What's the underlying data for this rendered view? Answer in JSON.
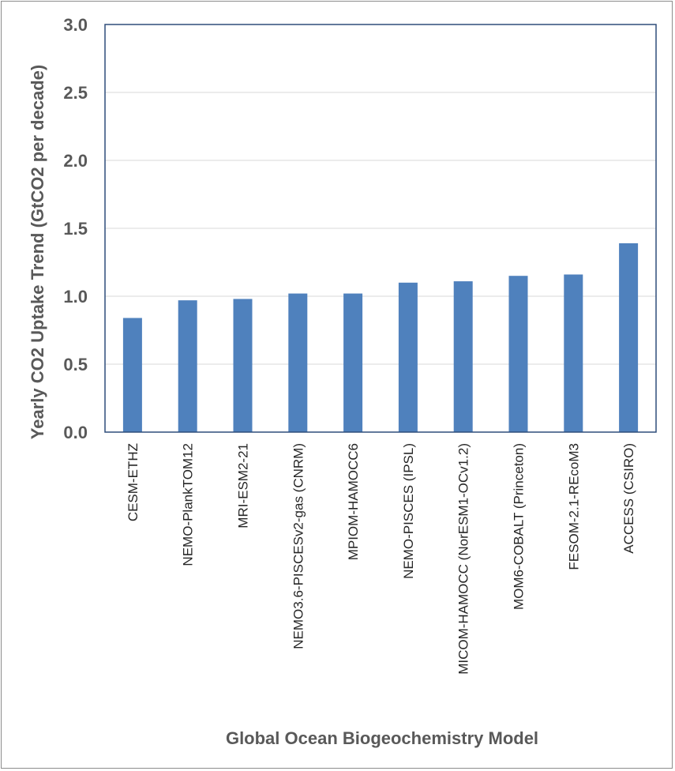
{
  "chart_data": {
    "type": "bar",
    "categories": [
      "CESM-ETHZ",
      "NEMO-PlankTOM12",
      "MRI-ESM2-21",
      "NEMO3.6-PISCESv2-gas (CNRM)",
      "MPIOM-HAMOCC6",
      "NEMO-PISCES (IPSL)",
      "MICOM-HAMOCC (NorESM1-OCv1.2)",
      "MOM6-COBALT (Princeton)",
      "FESOM-2.1-REcoM3",
      "ACCESS (CSIRO)"
    ],
    "values": [
      0.84,
      0.97,
      0.98,
      1.02,
      1.02,
      1.1,
      1.11,
      1.15,
      1.16,
      1.39
    ],
    "xlabel": "Global Ocean Biogeochemistry Model",
    "ylabel": "Yearly CO2 Uptake Trend (GtCO2 per decade)",
    "ylim": [
      0,
      3.0
    ],
    "yticks": [
      "0.0",
      "0.5",
      "1.0",
      "1.5",
      "2.0",
      "2.5",
      "3.0"
    ],
    "grid": true,
    "bar_color": "#4f81bd"
  }
}
